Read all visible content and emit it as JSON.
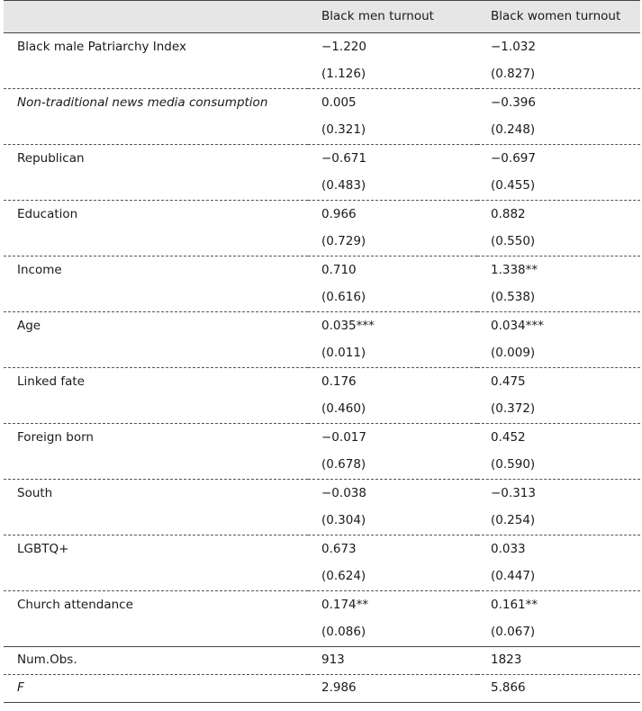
{
  "table": {
    "header": [
      "",
      "Black men turnout",
      "Black women turnout"
    ],
    "rows": [
      {
        "label": "Black male Patriarchy Index",
        "italic": false,
        "men": "−1.220",
        "women": "−1.032",
        "men_se": "(1.126)",
        "women_se": "(0.827)"
      },
      {
        "label": "Non-traditional news media consumption",
        "italic": true,
        "men": "0.005",
        "women": "−0.396",
        "men_se": "(0.321)",
        "women_se": "(0.248)"
      },
      {
        "label": "Republican",
        "italic": false,
        "men": "−0.671",
        "women": "−0.697",
        "men_se": "(0.483)",
        "women_se": "(0.455)"
      },
      {
        "label": "Education",
        "italic": false,
        "men": "0.966",
        "women": "0.882",
        "men_se": "(0.729)",
        "women_se": "(0.550)"
      },
      {
        "label": "Income",
        "italic": false,
        "men": "0.710",
        "women": "1.338**",
        "men_se": "(0.616)",
        "women_se": "(0.538)"
      },
      {
        "label": "Age",
        "italic": false,
        "men": "0.035***",
        "women": "0.034***",
        "men_se": "(0.011)",
        "women_se": "(0.009)"
      },
      {
        "label": "Linked fate",
        "italic": false,
        "men": "0.176",
        "women": "0.475",
        "men_se": "(0.460)",
        "women_se": "(0.372)"
      },
      {
        "label": "Foreign born",
        "italic": false,
        "men": "−0.017",
        "women": "0.452",
        "men_se": "(0.678)",
        "women_se": "(0.590)"
      },
      {
        "label": "South",
        "italic": false,
        "men": "−0.038",
        "women": "−0.313",
        "men_se": "(0.304)",
        "women_se": "(0.254)"
      },
      {
        "label": "LGBTQ+",
        "italic": false,
        "men": "0.673",
        "women": "0.033",
        "men_se": "(0.624)",
        "women_se": "(0.447)"
      },
      {
        "label": "Church attendance",
        "italic": false,
        "men": "0.174**",
        "women": "0.161**",
        "men_se": "(0.086)",
        "women_se": "(0.067)"
      }
    ],
    "stats": [
      {
        "label": "Num.Obs.",
        "italic": false,
        "men": "913",
        "women": "1823"
      },
      {
        "label": "F",
        "italic": true,
        "men": "2.986",
        "women": "5.866"
      }
    ]
  }
}
